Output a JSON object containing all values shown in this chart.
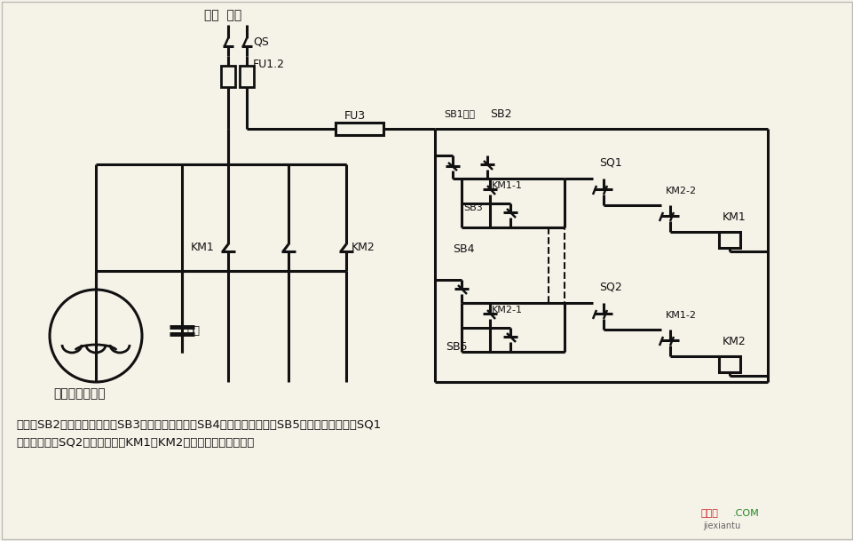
{
  "bg_color": "#f5f2e8",
  "line_color": "#111111",
  "text_color": "#111111",
  "title": "单相电容电动机",
  "desc1": "说明：SB2为上升启动按钮，SB3为上升点动按钮，SB4为下降启动按钮，SB5为下降点动按钮；SQ1",
  "desc2": "为最高限位，SQ2为最低限位。KM1、KM2可用中间继电器代替。",
  "wm1": "接线图",
  "wm2": ".COM",
  "wm3": "jiexiantu"
}
